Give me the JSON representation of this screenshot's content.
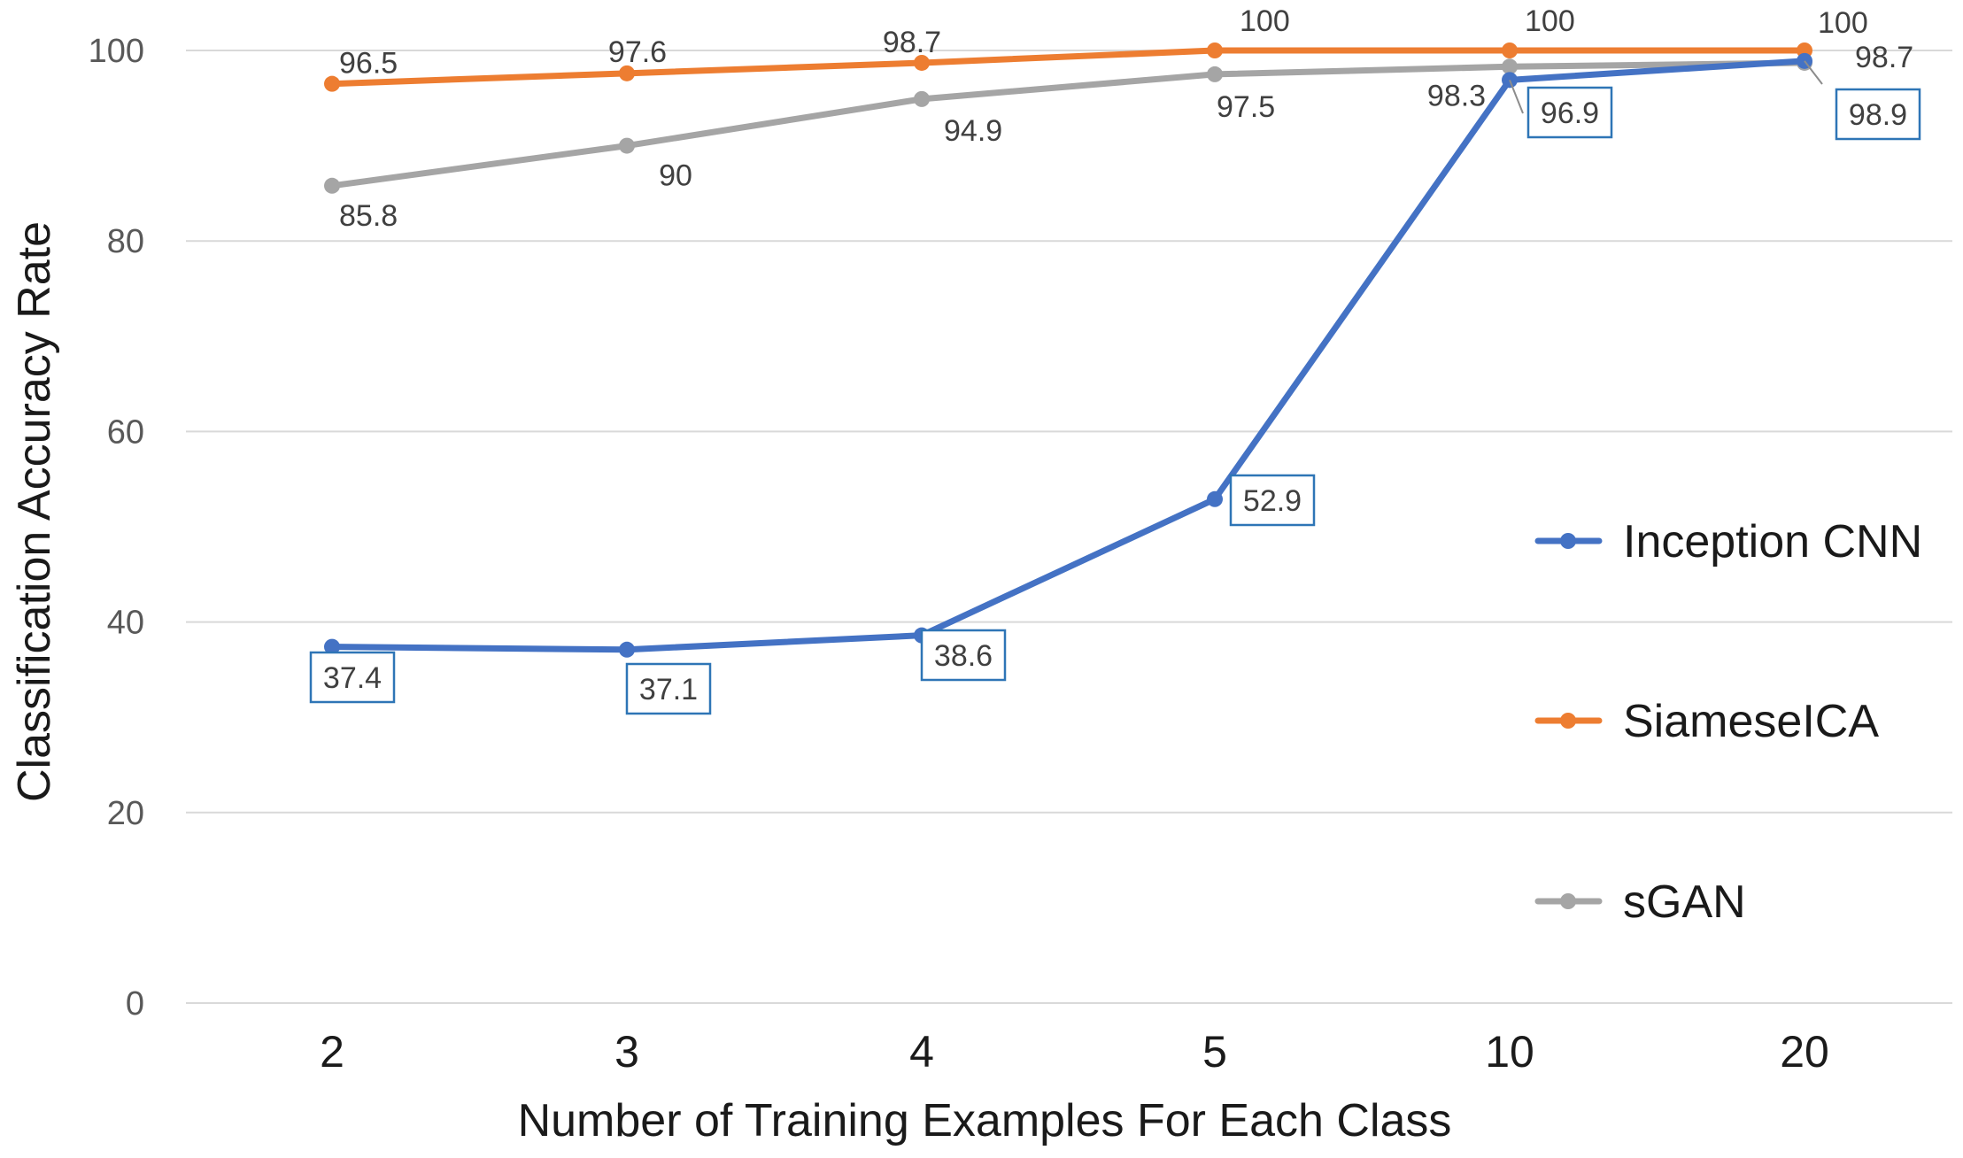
{
  "chart_data": {
    "type": "line",
    "categories": [
      "2",
      "3",
      "4",
      "5",
      "10",
      "20"
    ],
    "xlabel": "Number of Training Examples For Each Class",
    "ylabel": "Classification Accuracy Rate",
    "ylim": [
      0,
      100
    ],
    "yticks": [
      "0",
      "20",
      "40",
      "60",
      "80",
      "100"
    ],
    "grid": "horizontal",
    "legend_position": "right",
    "series": [
      {
        "name": "Inception CNN",
        "color": "#4472C4",
        "values": [
          37.4,
          37.1,
          38.6,
          52.9,
          96.9,
          98.9
        ],
        "labels": [
          "37.4",
          "37.1",
          "38.6",
          "52.9",
          "96.9",
          "98.9"
        ],
        "boxed_labels": true
      },
      {
        "name": "SiameseICA",
        "color": "#ED7D31",
        "values": [
          96.5,
          97.6,
          98.7,
          100,
          100,
          100
        ],
        "labels": [
          "96.5",
          "97.6",
          "98.7",
          "100",
          "100",
          "100"
        ],
        "boxed_labels": false
      },
      {
        "name": "sGAN",
        "color": "#A5A5A5",
        "values": [
          85.8,
          90,
          94.9,
          97.5,
          98.3,
          98.7
        ],
        "labels": [
          "85.8",
          "90",
          "94.9",
          "97.5",
          "98.3",
          "98.7"
        ],
        "boxed_labels": false
      }
    ]
  }
}
